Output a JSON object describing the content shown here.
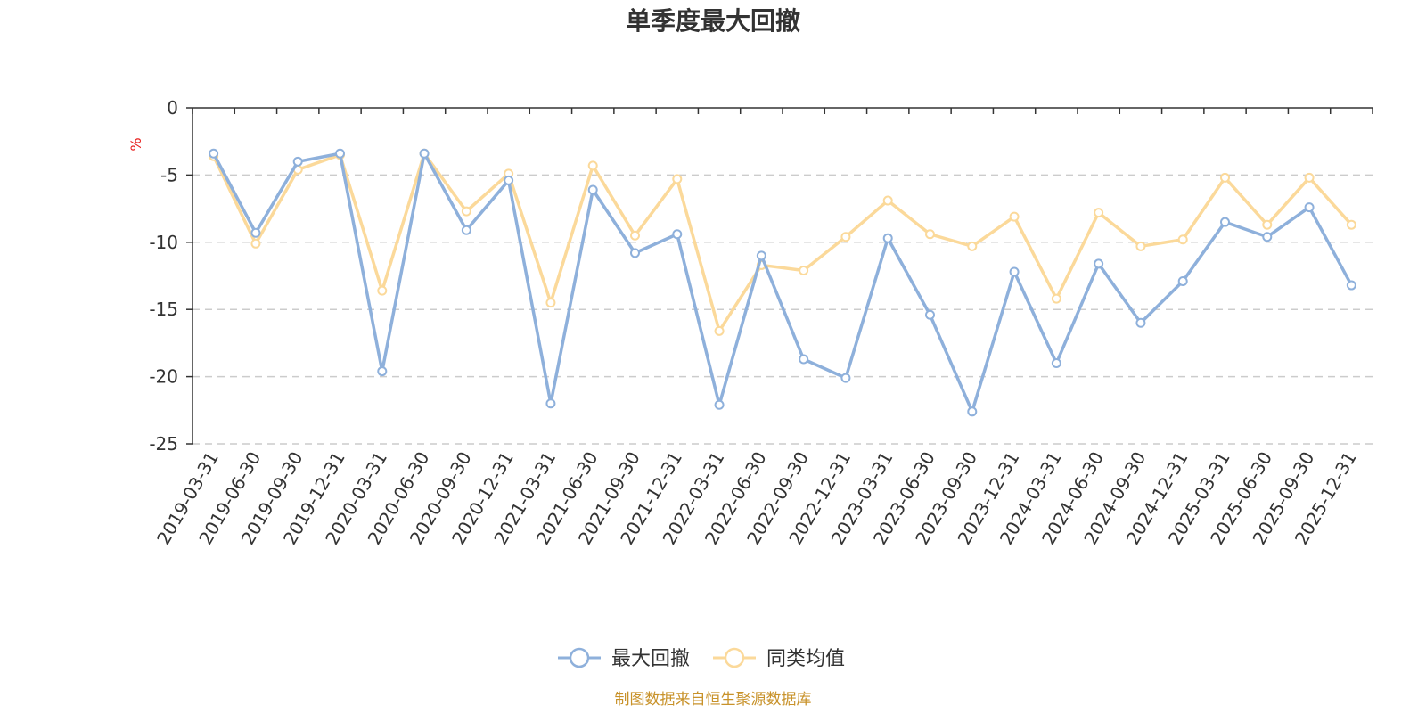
{
  "chart_data": {
    "type": "line",
    "title": "单季度最大回撤",
    "ylabel": "%",
    "ylim": [
      -25,
      0
    ],
    "yticks": [
      0,
      -5,
      -10,
      -15,
      -20,
      -25
    ],
    "grid": true,
    "legend_position": "bottom",
    "categories": [
      "2019-03-31",
      "2019-06-30",
      "2019-09-30",
      "2019-12-31",
      "2020-03-31",
      "2020-06-30",
      "2020-09-30",
      "2020-12-31",
      "2021-03-31",
      "2021-06-30",
      "2021-09-30",
      "2021-12-31",
      "2022-03-31",
      "2022-06-30",
      "2022-09-30",
      "2022-12-31",
      "2023-03-31",
      "2023-06-30",
      "2023-09-30",
      "2023-12-31",
      "2024-03-31",
      "2024-06-30",
      "2024-09-30",
      "2024-12-31",
      "2025-03-31",
      "2025-06-30",
      "2025-09-30",
      "2025-12-31"
    ],
    "series": [
      {
        "name": "最大回撤",
        "color": "#8eb0db",
        "values": [
          -3.4,
          -9.3,
          -4.0,
          -3.4,
          -19.6,
          -3.4,
          -9.1,
          -5.4,
          -22.0,
          -6.1,
          -10.8,
          -9.4,
          -22.1,
          -11.0,
          -18.7,
          -20.1,
          -9.7,
          -15.4,
          -22.6,
          -12.2,
          -19.0,
          -11.6,
          -16.0,
          -12.9,
          -8.5,
          -9.6,
          -7.4,
          -13.2
        ]
      },
      {
        "name": "同类均值",
        "color": "#fbd99a",
        "values": [
          -3.6,
          -10.1,
          -4.6,
          -3.5,
          -13.6,
          -3.4,
          -7.7,
          -4.9,
          -14.5,
          -4.3,
          -9.5,
          -5.3,
          -16.6,
          -11.7,
          -12.1,
          -9.6,
          -6.9,
          -9.4,
          -10.3,
          -8.1,
          -14.2,
          -7.8,
          -10.3,
          -9.8,
          -5.2,
          -8.7,
          -5.2,
          -8.7
        ]
      }
    ],
    "source": "制图数据来自恒生聚源数据库"
  }
}
